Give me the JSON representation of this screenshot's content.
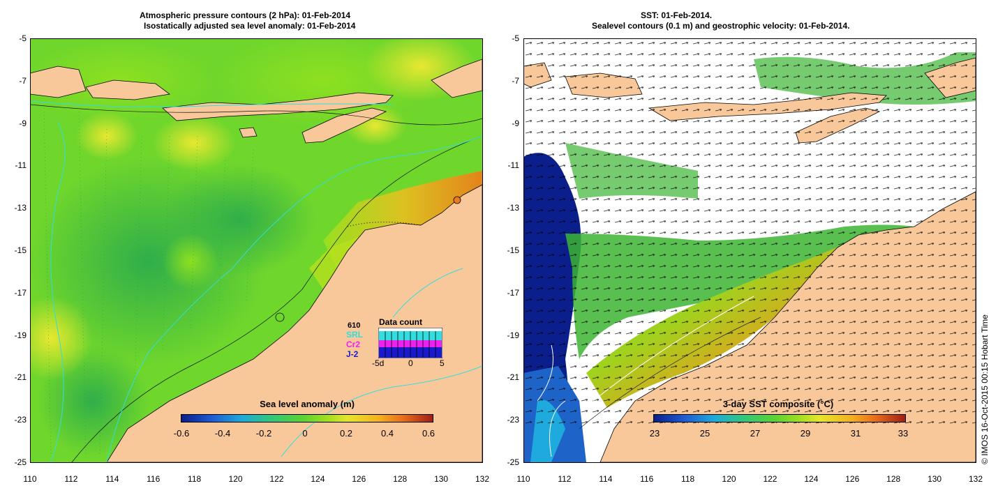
{
  "left_panel": {
    "title_line1": "Atmospheric pressure contours (2 hPa): 01-Feb-2014",
    "title_line2": "Isostatically adjusted sea level anomaly: 01-Feb-2014",
    "colorbar_title": "Sea level anomaly (m)",
    "colorbar_labels": [
      "-0.6",
      "-0.4",
      "-0.2",
      "0",
      "0.2",
      "0.4",
      "0.6"
    ],
    "data_count": {
      "title": "Data count",
      "max_label": "610",
      "satellites": [
        "SRL",
        "Cr2",
        "J-2"
      ],
      "axis_labels": [
        "-5d",
        "0",
        "5"
      ]
    }
  },
  "right_panel": {
    "title_line1": "SST: 01-Feb-2014.",
    "title_line2": "Sealevel contours (0.1 m) and geostrophic velocity: 01-Feb-2014.",
    "colorbar_title": "3-day SST composite (°C)",
    "colorbar_labels": [
      "23",
      "25",
      "27",
      "29",
      "31",
      "33"
    ]
  },
  "axes": {
    "y_ticks": [
      "-5",
      "-7",
      "-9",
      "-11",
      "-13",
      "-15",
      "-17",
      "-19",
      "-21",
      "-23",
      "-25"
    ],
    "x_ticks": [
      "110",
      "112",
      "114",
      "116",
      "118",
      "120",
      "122",
      "124",
      "126",
      "128",
      "130",
      "132"
    ]
  },
  "credit": "© IMOS 16-Oct-2015 00:15 Hobart Time",
  "colors": {
    "land": "#f8c89a",
    "sla_mid": "#49c93b",
    "sla_green_light": "#7ddc2a",
    "sla_yellow": "#e6e62a",
    "sla_orange": "#f59a1e",
    "sst_blue": "#0a1e8c",
    "sst_green": "#3cb432",
    "sst_orange": "#e6821e",
    "cloud_white": "#ffffff",
    "contour_cyan": "#33dddd"
  }
}
